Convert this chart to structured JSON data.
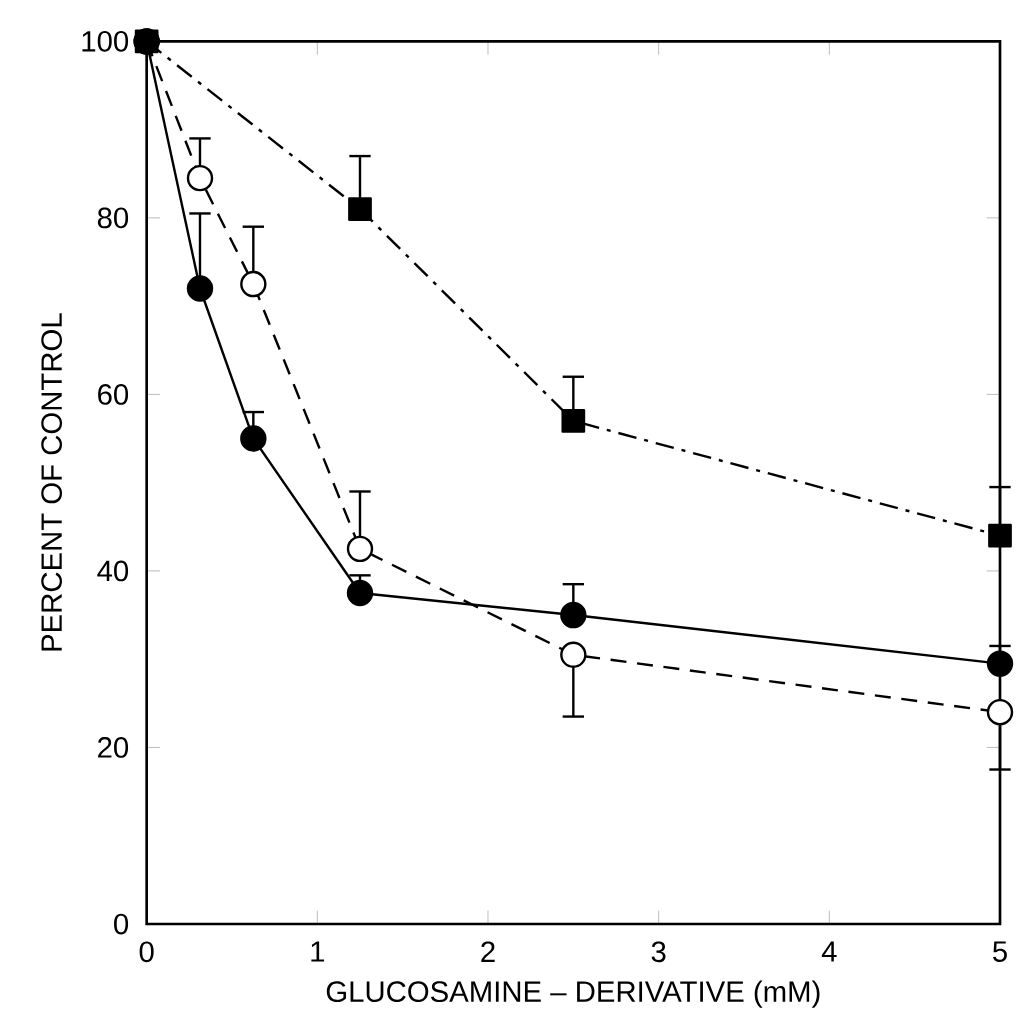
{
  "chart_data": {
    "type": "line",
    "xlabel": "GLUCOSAMINE – DERIVATIVE (mM)",
    "ylabel": "PERCENT OF CONTROL",
    "xlim": [
      0,
      5
    ],
    "ylim": [
      0,
      100
    ],
    "xticks": [
      0,
      1,
      2,
      3,
      4,
      5
    ],
    "yticks": [
      0,
      20,
      40,
      60,
      80,
      100
    ],
    "grid": false,
    "series": [
      {
        "color": "#000000",
        "marker": "circle",
        "line_style": "solid",
        "x": [
          0,
          0.3125,
          0.625,
          1.25,
          2.5,
          5
        ],
        "values": [
          100,
          72,
          55,
          37.5,
          35,
          29.5
        ],
        "errors": [
          null,
          [
            72,
            80.5
          ],
          [
            55,
            58
          ],
          [
            37.5,
            39.5
          ],
          [
            35,
            38.5
          ],
          [
            29.5,
            31.5
          ]
        ]
      },
      {
        "color": "#000000",
        "marker": "open circle",
        "line_style": "dashed",
        "x": [
          0,
          0.3125,
          0.625,
          1.25,
          2.5,
          5
        ],
        "values": [
          100,
          84.5,
          72.5,
          42.5,
          30.5,
          24
        ],
        "errors": [
          null,
          [
            84.5,
            89
          ],
          [
            72.5,
            79
          ],
          [
            42.5,
            49
          ],
          [
            23.5,
            30.5
          ],
          [
            17.5,
            24
          ]
        ]
      },
      {
        "color": "#000000",
        "marker": "square",
        "line_style": "dashdotted",
        "x": [
          0,
          1.25,
          2.5,
          5
        ],
        "values": [
          100,
          81,
          57,
          44
        ],
        "errors": [
          null,
          [
            81,
            87
          ],
          [
            57,
            62
          ],
          [
            44,
            49.5
          ]
        ]
      }
    ]
  }
}
